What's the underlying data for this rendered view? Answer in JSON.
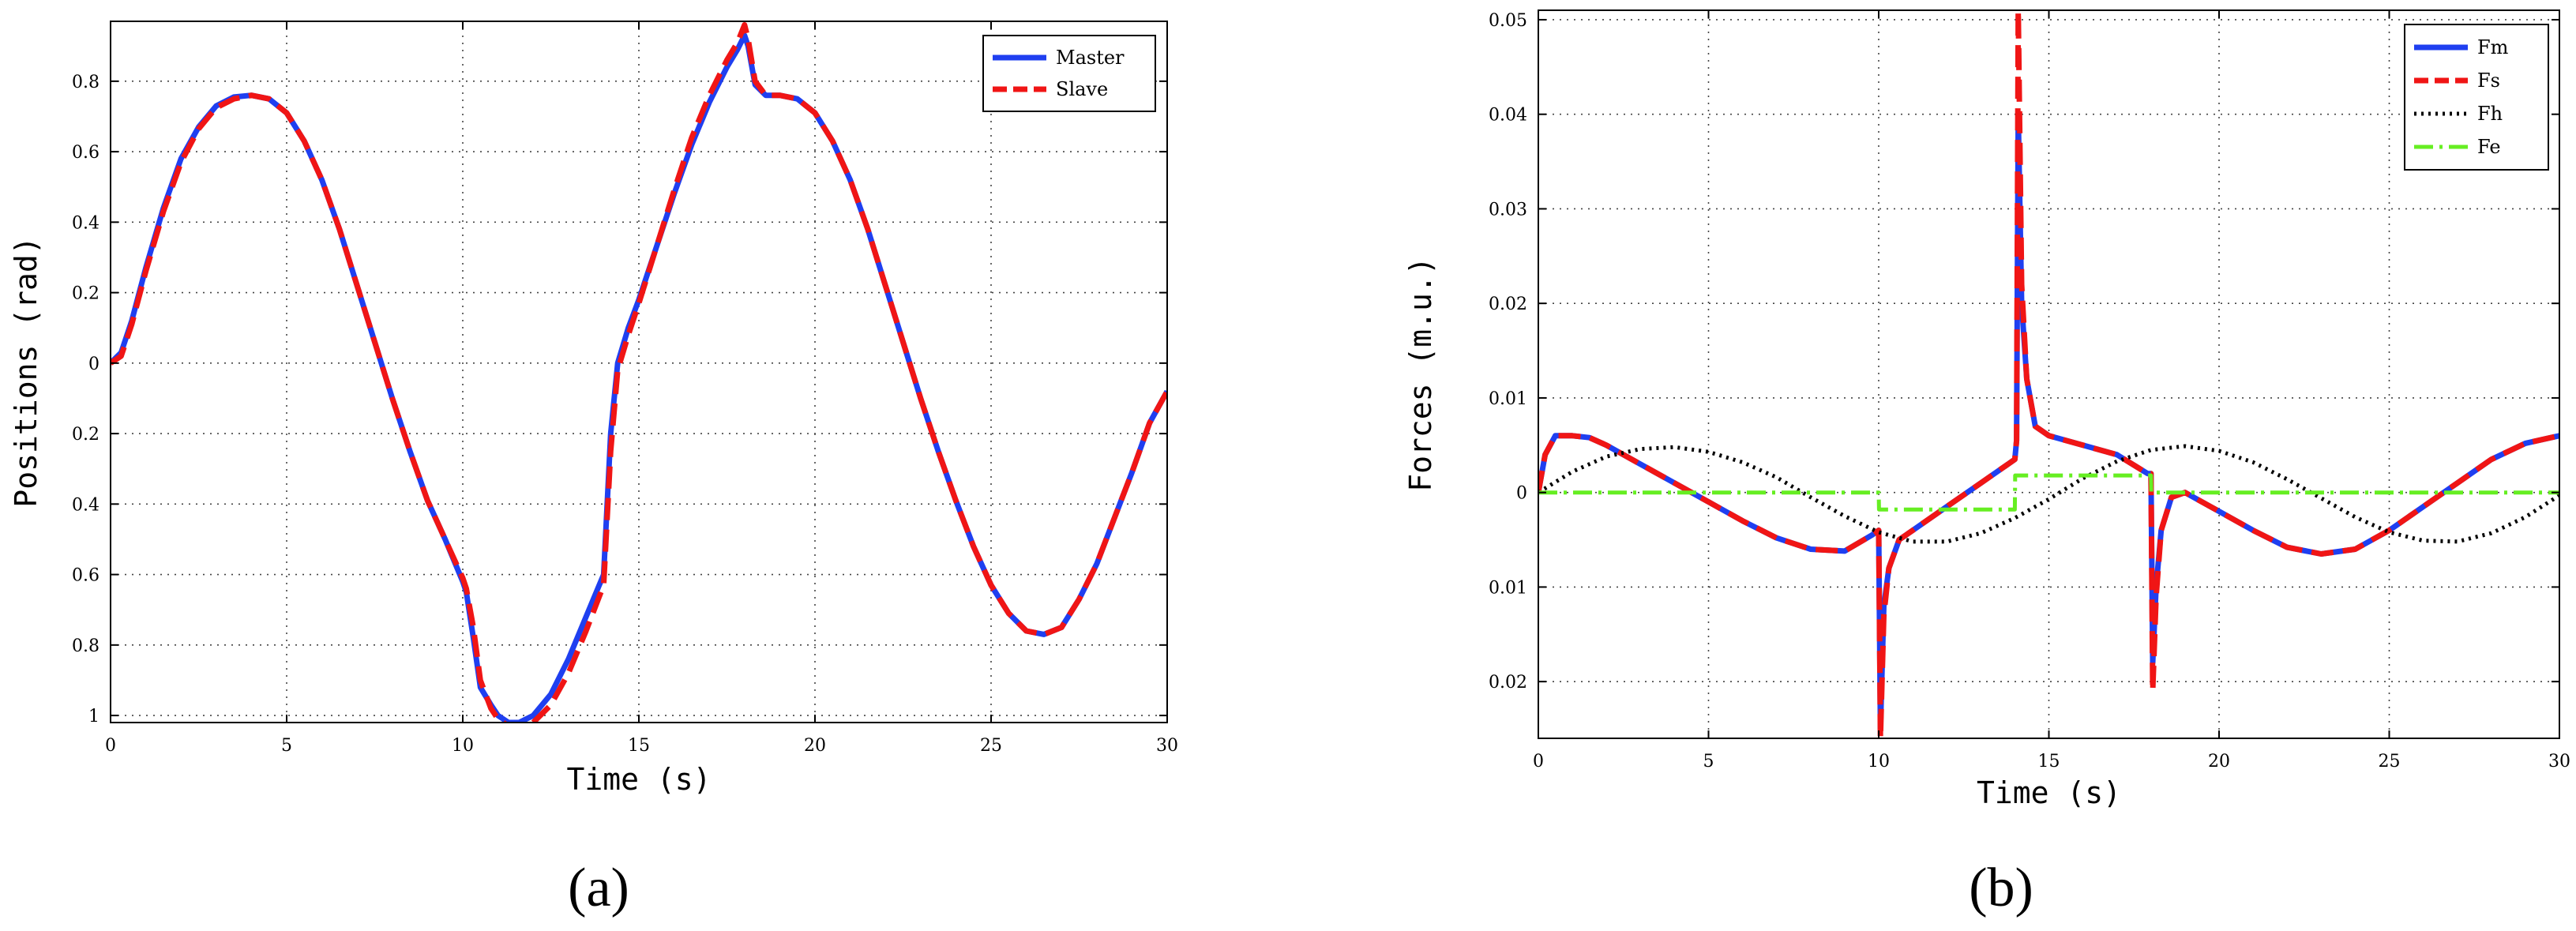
{
  "chart_data": [
    {
      "type": "line",
      "panel_label": "(a)",
      "title": "",
      "xlabel": "Time (s)",
      "ylabel": "Positions (rad)",
      "xlim": [
        0,
        30
      ],
      "ylim": [
        -1.02,
        0.97
      ],
      "grid": true,
      "legend": "top-right",
      "xticks": [
        0,
        5,
        10,
        15,
        20,
        25,
        30
      ],
      "yticks": [
        -1.0,
        -0.8,
        -0.6,
        -0.4,
        -0.2,
        0,
        0.2,
        0.4,
        0.6,
        0.8
      ],
      "ytick_labels": [
        "1",
        "0.8",
        "0.6",
        "0.4",
        "0.2",
        "0",
        "0.2",
        "0.4",
        "0.6",
        "0.8"
      ],
      "series": [
        {
          "name": "Master",
          "color": "#1f3ff0",
          "style": "solid",
          "x": [
            0,
            0.3,
            0.6,
            1,
            1.5,
            2,
            2.5,
            3,
            3.5,
            4,
            4.5,
            5,
            5.5,
            6,
            6.5,
            7,
            7.5,
            8,
            8.5,
            9,
            9.5,
            10,
            10.1,
            10.3,
            10.5,
            10.8,
            11,
            11.3,
            11.6,
            12,
            12.5,
            13,
            13.5,
            14,
            14.2,
            14.4,
            14.7,
            15,
            15.5,
            16,
            16.5,
            17,
            17.5,
            17.8,
            18,
            18.1,
            18.3,
            18.6,
            19,
            19.5,
            20,
            20.5,
            21,
            21.5,
            22,
            22.5,
            23,
            23.5,
            24,
            24.5,
            25,
            25.5,
            26,
            26.5,
            27,
            27.5,
            28,
            28.5,
            29,
            29.5,
            30
          ],
          "y": [
            0,
            0.03,
            0.12,
            0.27,
            0.44,
            0.58,
            0.67,
            0.73,
            0.755,
            0.76,
            0.75,
            0.71,
            0.63,
            0.52,
            0.38,
            0.22,
            0.06,
            -0.1,
            -0.25,
            -0.39,
            -0.5,
            -0.62,
            -0.65,
            -0.78,
            -0.92,
            -0.97,
            -1.0,
            -1.02,
            -1.02,
            -1.0,
            -0.94,
            -0.84,
            -0.72,
            -0.6,
            -0.2,
            0.0,
            0.1,
            0.18,
            0.33,
            0.48,
            0.62,
            0.74,
            0.84,
            0.89,
            0.93,
            0.9,
            0.79,
            0.76,
            0.76,
            0.75,
            0.71,
            0.63,
            0.52,
            0.38,
            0.22,
            0.06,
            -0.1,
            -0.25,
            -0.39,
            -0.52,
            -0.63,
            -0.71,
            -0.76,
            -0.77,
            -0.75,
            -0.67,
            -0.57,
            -0.44,
            -0.31,
            -0.17,
            -0.08
          ]
        },
        {
          "name": "Slave",
          "color": "#f01515",
          "style": "dashed",
          "x": [
            0,
            0.3,
            0.6,
            1,
            1.5,
            2,
            2.5,
            3,
            3.5,
            4,
            4.5,
            5,
            5.5,
            6,
            6.5,
            7,
            7.5,
            8,
            8.5,
            9,
            9.5,
            10,
            10.1,
            10.3,
            10.5,
            10.8,
            11,
            11.3,
            11.6,
            12,
            12.5,
            13,
            13.5,
            14,
            14.2,
            14.4,
            14.7,
            15,
            15.5,
            16,
            16.5,
            17,
            17.5,
            17.8,
            18,
            18.1,
            18.3,
            18.6,
            19,
            19.5,
            20,
            20.5,
            21,
            21.5,
            22,
            22.5,
            23,
            23.5,
            24,
            24.5,
            25,
            25.5,
            26,
            26.5,
            27,
            27.5,
            28,
            28.5,
            29,
            29.5,
            30
          ],
          "y": [
            0,
            0.02,
            0.11,
            0.26,
            0.43,
            0.57,
            0.665,
            0.725,
            0.75,
            0.76,
            0.75,
            0.71,
            0.63,
            0.52,
            0.38,
            0.22,
            0.06,
            -0.1,
            -0.25,
            -0.39,
            -0.5,
            -0.61,
            -0.64,
            -0.75,
            -0.9,
            -0.98,
            -1.01,
            -1.03,
            -1.03,
            -1.02,
            -0.97,
            -0.88,
            -0.76,
            -0.63,
            -0.25,
            -0.02,
            0.08,
            0.17,
            0.33,
            0.49,
            0.64,
            0.76,
            0.86,
            0.91,
            0.96,
            0.92,
            0.8,
            0.76,
            0.76,
            0.75,
            0.71,
            0.63,
            0.52,
            0.38,
            0.22,
            0.06,
            -0.1,
            -0.25,
            -0.39,
            -0.52,
            -0.63,
            -0.71,
            -0.76,
            -0.77,
            -0.75,
            -0.67,
            -0.57,
            -0.44,
            -0.31,
            -0.17,
            -0.08
          ]
        }
      ]
    },
    {
      "type": "line",
      "panel_label": "(b)",
      "title": "",
      "xlabel": "Time (s)",
      "ylabel": "Forces (m.u.)",
      "xlim": [
        0,
        30
      ],
      "ylim": [
        -0.026,
        0.051
      ],
      "grid": true,
      "legend": "top-right",
      "xticks": [
        0,
        5,
        10,
        15,
        20,
        25,
        30
      ],
      "yticks": [
        -0.02,
        -0.01,
        0,
        0.01,
        0.02,
        0.03,
        0.04,
        0.05
      ],
      "ytick_labels": [
        "0.02",
        "0.01",
        "0",
        "0.01",
        "0.02",
        "0.03",
        "0.04",
        "0.05"
      ],
      "series": [
        {
          "name": "Fm",
          "color": "#1f3ff0",
          "style": "solid",
          "x": [
            0,
            0.2,
            0.5,
            1,
            1.5,
            2,
            3,
            4,
            5,
            6,
            7,
            8,
            9,
            9.8,
            10,
            10.05,
            10.15,
            10.3,
            10.6,
            11,
            12,
            13,
            14,
            14.05,
            14.1,
            14.2,
            14.35,
            14.6,
            15,
            16,
            17,
            17.9,
            18,
            18.05,
            18.15,
            18.3,
            18.6,
            19,
            20,
            21,
            22,
            23,
            24,
            25,
            26,
            27,
            28,
            29,
            30
          ],
          "y": [
            0,
            0.004,
            0.006,
            0.006,
            0.0058,
            0.005,
            0.003,
            0.001,
            -0.001,
            -0.003,
            -0.0048,
            -0.006,
            -0.0062,
            -0.0045,
            -0.004,
            -0.025,
            -0.012,
            -0.008,
            -0.005,
            -0.004,
            -0.0015,
            0.001,
            0.0035,
            0.0055,
            0.04,
            0.02,
            0.012,
            0.007,
            0.006,
            0.005,
            0.004,
            0.002,
            0.002,
            -0.018,
            -0.01,
            -0.004,
            -0.0005,
            0,
            -0.002,
            -0.004,
            -0.0058,
            -0.0065,
            -0.006,
            -0.004,
            -0.0015,
            0.001,
            0.0035,
            0.0052,
            0.006
          ]
        },
        {
          "name": "Fs",
          "color": "#f01515",
          "style": "dashed",
          "x": [
            0,
            0.2,
            0.5,
            1,
            1.5,
            2,
            3,
            4,
            5,
            6,
            7,
            8,
            9,
            9.8,
            10,
            10.05,
            10.15,
            10.3,
            10.6,
            11,
            12,
            13,
            14,
            14.05,
            14.1,
            14.2,
            14.35,
            14.6,
            15,
            16,
            17,
            17.9,
            18,
            18.05,
            18.15,
            18.3,
            18.6,
            19,
            20,
            21,
            22,
            23,
            24,
            25,
            26,
            27,
            28,
            29,
            30
          ],
          "y": [
            0,
            0.004,
            0.006,
            0.006,
            0.0058,
            0.005,
            0.003,
            0.001,
            -0.001,
            -0.003,
            -0.0048,
            -0.006,
            -0.0062,
            -0.0045,
            -0.004,
            -0.026,
            -0.013,
            -0.008,
            -0.005,
            -0.004,
            -0.0015,
            0.001,
            0.0035,
            0.0055,
            0.051,
            0.022,
            0.012,
            0.007,
            0.006,
            0.005,
            0.004,
            0.002,
            0.002,
            -0.021,
            -0.011,
            -0.004,
            -0.0005,
            0,
            -0.002,
            -0.004,
            -0.0058,
            -0.0065,
            -0.006,
            -0.004,
            -0.0015,
            0.001,
            0.0035,
            0.0052,
            0.006
          ]
        },
        {
          "name": "Fh",
          "color": "#000000",
          "style": "dotted",
          "x": [
            0,
            1,
            2,
            3,
            4,
            5,
            6,
            7,
            8,
            9,
            10,
            11,
            12,
            13,
            14,
            15,
            16,
            17,
            18,
            19,
            20,
            21,
            22,
            23,
            24,
            25,
            26,
            27,
            28,
            29,
            30
          ],
          "y": [
            0,
            0.0022,
            0.0038,
            0.0046,
            0.0048,
            0.0043,
            0.0032,
            0.0016,
            -0.0005,
            -0.0025,
            -0.0042,
            -0.0052,
            -0.0052,
            -0.0043,
            -0.0027,
            -0.0007,
            0.0015,
            0.0033,
            0.0045,
            0.0049,
            0.0044,
            0.0032,
            0.0014,
            -0.0006,
            -0.0026,
            -0.0042,
            -0.0051,
            -0.0052,
            -0.0043,
            -0.0026,
            -0.0003
          ]
        },
        {
          "name": "Fe",
          "color": "#66ee22",
          "style": "dashdot",
          "x": [
            0,
            10,
            10.01,
            14,
            14.01,
            18,
            18.01,
            30
          ],
          "y": [
            0,
            0,
            -0.0018,
            -0.0018,
            0.0018,
            0.0018,
            0,
            0
          ]
        }
      ]
    }
  ]
}
